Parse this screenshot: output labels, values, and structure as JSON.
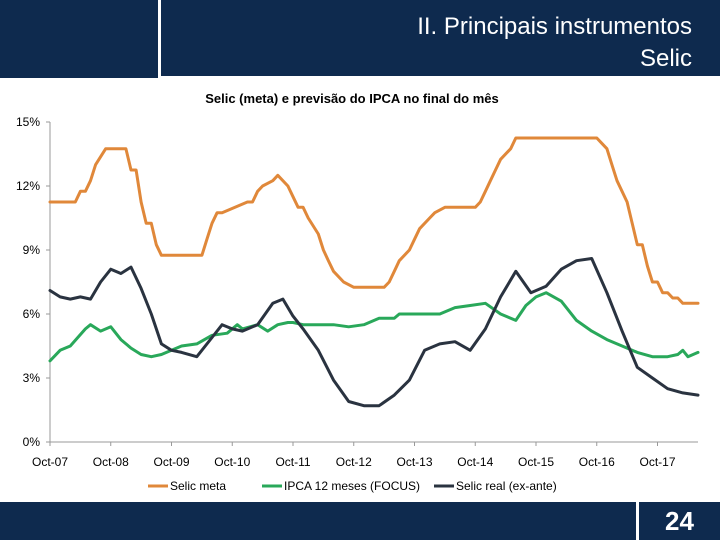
{
  "header": {
    "title": "II. Principais instrumentos",
    "subtitle": "Selic"
  },
  "footer": {
    "page_number": "24"
  },
  "chart_data": {
    "type": "line",
    "title": "Selic (meta) e previsão do IPCA no final do mês",
    "x_ticks": [
      "Oct-07",
      "Oct-08",
      "Oct-09",
      "Oct-10",
      "Oct-11",
      "Oct-12",
      "Oct-13",
      "Oct-14",
      "Oct-15",
      "Oct-16",
      "Oct-17"
    ],
    "y_ticks": [
      "0%",
      "3%",
      "6%",
      "9%",
      "12%",
      "15%"
    ],
    "ylim": [
      0,
      15
    ],
    "x_start": "2007-10",
    "x_end": "2018-06",
    "legend_position": "bottom",
    "series": [
      {
        "name": "Selic meta",
        "color": "#e0883a",
        "points": [
          [
            "2007-10",
            11.25
          ],
          [
            "2008-03",
            11.25
          ],
          [
            "2008-04",
            11.75
          ],
          [
            "2008-05",
            11.75
          ],
          [
            "2008-06",
            12.25
          ],
          [
            "2008-07",
            13.0
          ],
          [
            "2008-09",
            13.75
          ],
          [
            "2009-01",
            13.75
          ],
          [
            "2009-02",
            12.75
          ],
          [
            "2009-03",
            12.75
          ],
          [
            "2009-04",
            11.25
          ],
          [
            "2009-05",
            10.25
          ],
          [
            "2009-06",
            10.25
          ],
          [
            "2009-07",
            9.25
          ],
          [
            "2009-08",
            8.75
          ],
          [
            "2010-04",
            8.75
          ],
          [
            "2010-05",
            9.5
          ],
          [
            "2010-06",
            10.25
          ],
          [
            "2010-07",
            10.75
          ],
          [
            "2010-08",
            10.75
          ],
          [
            "2011-01",
            11.25
          ],
          [
            "2011-02",
            11.25
          ],
          [
            "2011-03",
            11.75
          ],
          [
            "2011-04",
            12.0
          ],
          [
            "2011-06",
            12.25
          ],
          [
            "2011-07",
            12.5
          ],
          [
            "2011-09",
            12.0
          ],
          [
            "2011-10",
            11.5
          ],
          [
            "2011-11",
            11.0
          ],
          [
            "2011-12",
            11.0
          ],
          [
            "2012-01",
            10.5
          ],
          [
            "2012-03",
            9.75
          ],
          [
            "2012-04",
            9.0
          ],
          [
            "2012-05",
            8.5
          ],
          [
            "2012-06",
            8.0
          ],
          [
            "2012-08",
            7.5
          ],
          [
            "2012-10",
            7.25
          ],
          [
            "2013-04",
            7.25
          ],
          [
            "2013-05",
            7.5
          ],
          [
            "2013-06",
            8.0
          ],
          [
            "2013-07",
            8.5
          ],
          [
            "2013-09",
            9.0
          ],
          [
            "2013-10",
            9.5
          ],
          [
            "2013-11",
            10.0
          ],
          [
            "2014-01",
            10.5
          ],
          [
            "2014-02",
            10.75
          ],
          [
            "2014-04",
            11.0
          ],
          [
            "2014-10",
            11.0
          ],
          [
            "2014-11",
            11.25
          ],
          [
            "2014-12",
            11.75
          ],
          [
            "2015-01",
            12.25
          ],
          [
            "2015-02",
            12.75
          ],
          [
            "2015-03",
            13.25
          ],
          [
            "2015-05",
            13.75
          ],
          [
            "2015-06",
            14.25
          ],
          [
            "2016-10",
            14.25
          ],
          [
            "2016-11",
            14.0
          ],
          [
            "2016-12",
            13.75
          ],
          [
            "2017-01",
            13.0
          ],
          [
            "2017-02",
            12.25
          ],
          [
            "2017-04",
            11.25
          ],
          [
            "2017-05",
            10.25
          ],
          [
            "2017-06",
            9.25
          ],
          [
            "2017-07",
            9.25
          ],
          [
            "2017-08",
            8.25
          ],
          [
            "2017-09",
            7.5
          ],
          [
            "2017-10",
            7.5
          ],
          [
            "2017-11",
            7.0
          ],
          [
            "2017-12",
            7.0
          ],
          [
            "2018-01",
            6.75
          ],
          [
            "2018-02",
            6.75
          ],
          [
            "2018-03",
            6.5
          ],
          [
            "2018-06",
            6.5
          ]
        ]
      },
      {
        "name": "IPCA 12 meses (FOCUS)",
        "color": "#29a85a",
        "points": [
          [
            "2007-10",
            3.8
          ],
          [
            "2007-12",
            4.3
          ],
          [
            "2008-02",
            4.5
          ],
          [
            "2008-05",
            5.3
          ],
          [
            "2008-06",
            5.5
          ],
          [
            "2008-08",
            5.2
          ],
          [
            "2008-10",
            5.4
          ],
          [
            "2008-12",
            4.8
          ],
          [
            "2009-02",
            4.4
          ],
          [
            "2009-04",
            4.1
          ],
          [
            "2009-06",
            4.0
          ],
          [
            "2009-08",
            4.1
          ],
          [
            "2009-10",
            4.3
          ],
          [
            "2009-12",
            4.5
          ],
          [
            "2010-03",
            4.6
          ],
          [
            "2010-06",
            5.0
          ],
          [
            "2010-09",
            5.1
          ],
          [
            "2010-11",
            5.5
          ],
          [
            "2010-12",
            5.3
          ],
          [
            "2011-03",
            5.5
          ],
          [
            "2011-05",
            5.2
          ],
          [
            "2011-07",
            5.5
          ],
          [
            "2011-09",
            5.6
          ],
          [
            "2011-10",
            5.6
          ],
          [
            "2011-12",
            5.5
          ],
          [
            "2012-03",
            5.5
          ],
          [
            "2012-06",
            5.5
          ],
          [
            "2012-09",
            5.4
          ],
          [
            "2012-12",
            5.5
          ],
          [
            "2013-03",
            5.8
          ],
          [
            "2013-06",
            5.8
          ],
          [
            "2013-07",
            6.0
          ],
          [
            "2013-09",
            6.0
          ],
          [
            "2013-12",
            6.0
          ],
          [
            "2014-03",
            6.0
          ],
          [
            "2014-06",
            6.3
          ],
          [
            "2014-09",
            6.4
          ],
          [
            "2014-12",
            6.5
          ],
          [
            "2015-03",
            6.0
          ],
          [
            "2015-06",
            5.7
          ],
          [
            "2015-08",
            6.4
          ],
          [
            "2015-10",
            6.8
          ],
          [
            "2015-12",
            7.0
          ],
          [
            "2016-03",
            6.6
          ],
          [
            "2016-06",
            5.7
          ],
          [
            "2016-09",
            5.2
          ],
          [
            "2016-12",
            4.8
          ],
          [
            "2017-03",
            4.5
          ],
          [
            "2017-06",
            4.2
          ],
          [
            "2017-09",
            4.0
          ],
          [
            "2017-12",
            4.0
          ],
          [
            "2018-02",
            4.1
          ],
          [
            "2018-03",
            4.3
          ],
          [
            "2018-04",
            4.0
          ],
          [
            "2018-06",
            4.2
          ]
        ]
      },
      {
        "name": "Selic real (ex-ante)",
        "color": "#2a3340",
        "points": [
          [
            "2007-10",
            7.1
          ],
          [
            "2007-12",
            6.8
          ],
          [
            "2008-02",
            6.7
          ],
          [
            "2008-04",
            6.8
          ],
          [
            "2008-06",
            6.7
          ],
          [
            "2008-08",
            7.5
          ],
          [
            "2008-10",
            8.1
          ],
          [
            "2008-12",
            7.9
          ],
          [
            "2009-02",
            8.2
          ],
          [
            "2009-04",
            7.2
          ],
          [
            "2009-06",
            6.0
          ],
          [
            "2009-08",
            4.6
          ],
          [
            "2009-10",
            4.3
          ],
          [
            "2009-12",
            4.2
          ],
          [
            "2010-03",
            4.0
          ],
          [
            "2010-06",
            4.9
          ],
          [
            "2010-08",
            5.5
          ],
          [
            "2010-10",
            5.3
          ],
          [
            "2010-12",
            5.2
          ],
          [
            "2011-03",
            5.5
          ],
          [
            "2011-06",
            6.5
          ],
          [
            "2011-08",
            6.7
          ],
          [
            "2011-10",
            5.9
          ],
          [
            "2011-12",
            5.3
          ],
          [
            "2012-03",
            4.3
          ],
          [
            "2012-06",
            2.9
          ],
          [
            "2012-09",
            1.9
          ],
          [
            "2012-12",
            1.7
          ],
          [
            "2013-03",
            1.7
          ],
          [
            "2013-06",
            2.2
          ],
          [
            "2013-09",
            2.9
          ],
          [
            "2013-12",
            4.3
          ],
          [
            "2014-03",
            4.6
          ],
          [
            "2014-06",
            4.7
          ],
          [
            "2014-09",
            4.3
          ],
          [
            "2014-12",
            5.3
          ],
          [
            "2015-03",
            6.8
          ],
          [
            "2015-06",
            8.0
          ],
          [
            "2015-09",
            7.0
          ],
          [
            "2015-12",
            7.3
          ],
          [
            "2016-03",
            8.1
          ],
          [
            "2016-06",
            8.5
          ],
          [
            "2016-09",
            8.6
          ],
          [
            "2016-12",
            7.0
          ],
          [
            "2017-03",
            5.2
          ],
          [
            "2017-06",
            3.5
          ],
          [
            "2017-09",
            3.0
          ],
          [
            "2017-12",
            2.5
          ],
          [
            "2018-03",
            2.3
          ],
          [
            "2018-06",
            2.2
          ]
        ]
      }
    ]
  }
}
